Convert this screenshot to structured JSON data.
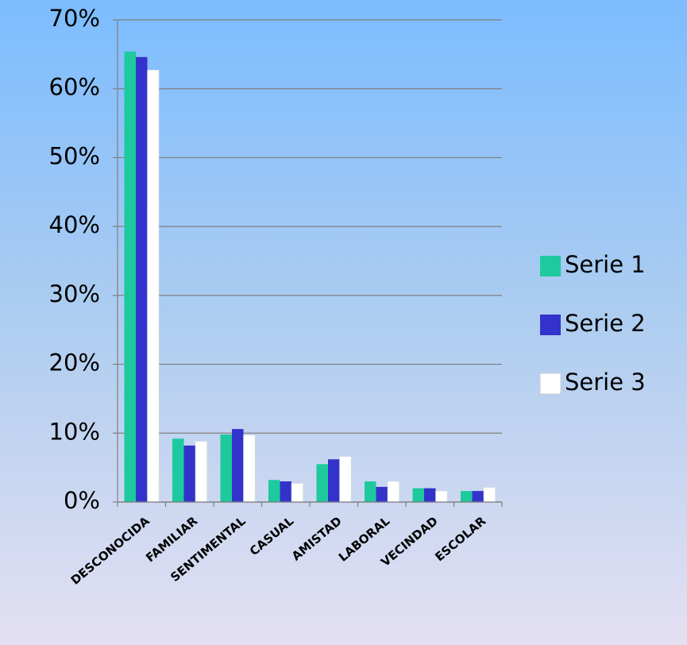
{
  "chart_data": {
    "type": "bar",
    "categories": [
      "DESCONOCIDA",
      "FAMILIAR",
      "SENTIMENTAL",
      "CASUAL",
      "AMISTAD",
      "LABORAL",
      "VECINDAD",
      "ESCOLAR"
    ],
    "series": [
      {
        "name": "Serie 1",
        "color": "#1ec99e",
        "values": [
          65.4,
          9.2,
          9.8,
          3.2,
          5.5,
          3.0,
          2.0,
          1.6
        ]
      },
      {
        "name": "Serie 2",
        "color": "#3333cc",
        "values": [
          64.6,
          8.2,
          10.6,
          3.0,
          6.2,
          2.2,
          2.0,
          1.6
        ]
      },
      {
        "name": "Serie 3",
        "color": "#ffffff",
        "values": [
          62.7,
          8.8,
          9.7,
          2.7,
          6.6,
          3.0,
          1.6,
          2.1
        ]
      }
    ],
    "ylim": [
      0,
      70
    ],
    "yticks": [
      {
        "value": 0,
        "label": "0%"
      },
      {
        "value": 10,
        "label": "10%"
      },
      {
        "value": 20,
        "label": "20%"
      },
      {
        "value": 30,
        "label": "30%"
      },
      {
        "value": 40,
        "label": "40%"
      },
      {
        "value": 50,
        "label": "50%"
      },
      {
        "value": 60,
        "label": "60%"
      },
      {
        "value": 70,
        "label": "70%"
      }
    ],
    "grid": true,
    "legend": "right"
  }
}
